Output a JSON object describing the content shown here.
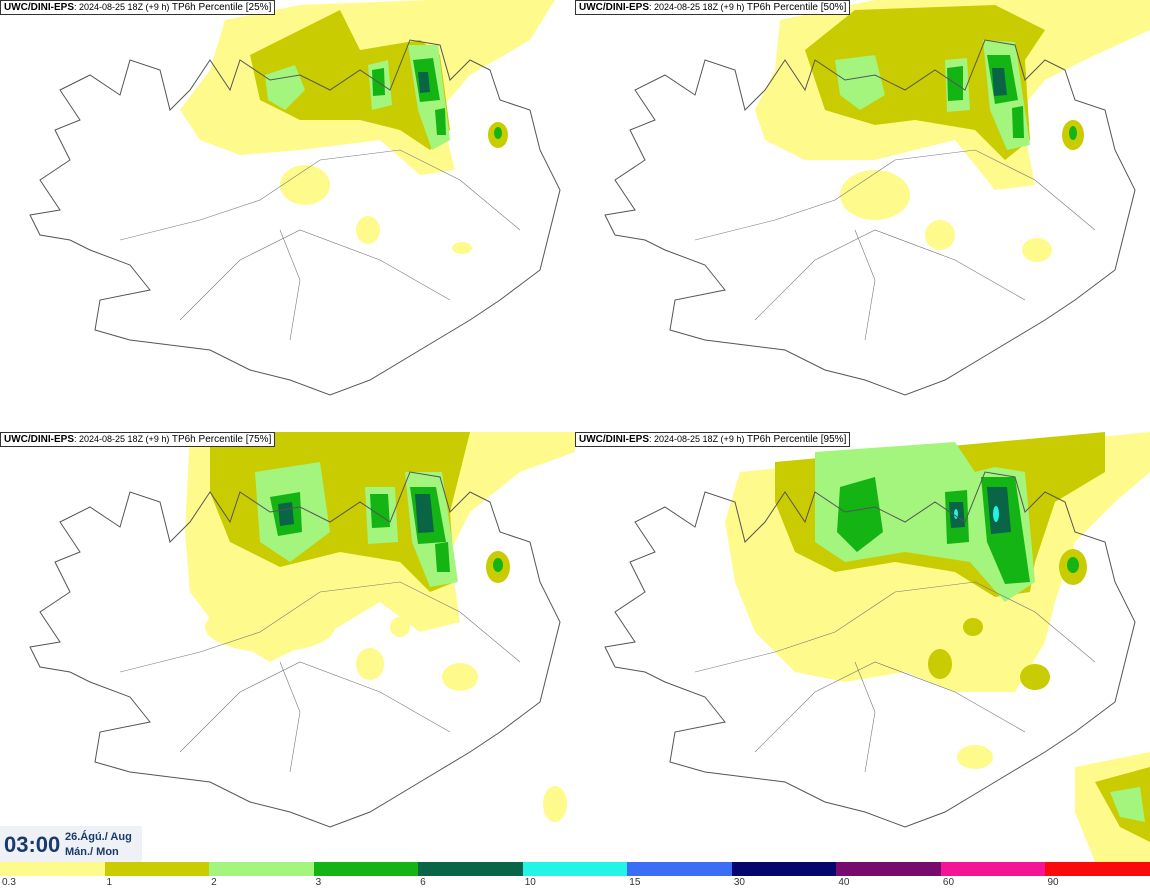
{
  "panels": [
    {
      "source": "UWC/DINI-EPS",
      "run": "2024-08-25 18Z (+9 h)",
      "title": "TP6h Percentile [25%]"
    },
    {
      "source": "UWC/DINI-EPS",
      "run": "2024-08-25 18Z (+9 h)",
      "title": "TP6h Percentile [50%]"
    },
    {
      "source": "UWC/DINI-EPS",
      "run": "2024-08-25 18Z (+9 h)",
      "title": "TP6h Percentile [75%]"
    },
    {
      "source": "UWC/DINI-EPS",
      "run": "2024-08-25 18Z (+9 h)",
      "title": "TP6h Percentile [95%]"
    }
  ],
  "valid_time": {
    "time": "03:00",
    "date": "26.Ágú./ Aug",
    "day": "Mán./ Mon"
  },
  "legend": {
    "labels": [
      "0.3",
      "1",
      "2",
      "3",
      "6",
      "10",
      "15",
      "30",
      "40",
      "60",
      "90"
    ],
    "colors": [
      "#fffa8c",
      "#c8cc00",
      "#a3f57d",
      "#14b414",
      "#0a6446",
      "#22f5e6",
      "#3c6ef5",
      "#05056e",
      "#780a6e",
      "#f51496",
      "#fa0a0a"
    ]
  },
  "map_colors": {
    "light_yellow": "#fffa8c",
    "olive": "#c8cc00",
    "light_green": "#a3f57d",
    "green": "#14b414",
    "dark_green": "#0a6446",
    "cyan": "#22f5e6",
    "coast": "#555555"
  }
}
